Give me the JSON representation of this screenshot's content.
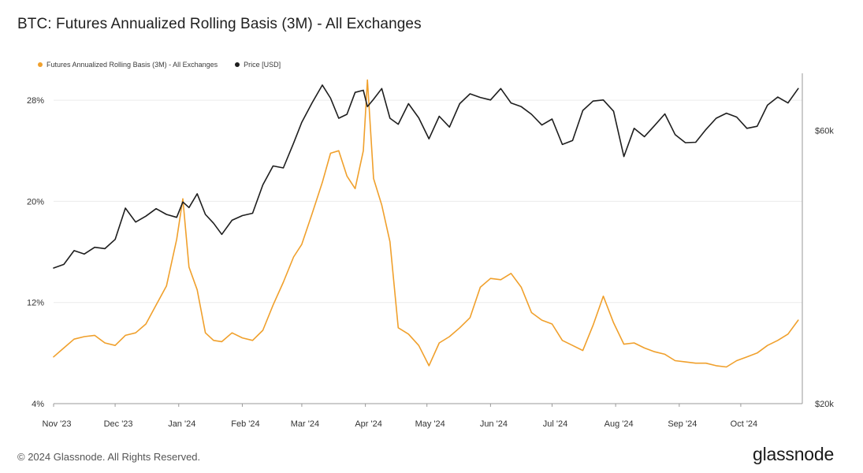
{
  "title": "BTC: Futures Annualized Rolling Basis (3M) - All Exchanges",
  "footer": {
    "copyright": "© 2024 Glassnode. All Rights Reserved.",
    "logo": "glassnode"
  },
  "colors": {
    "basis": "#f0a02c",
    "price": "#1e1e1e",
    "grid": "#ececec",
    "axis": "#999999"
  },
  "chart_data": {
    "type": "line",
    "legend": [
      "Futures Annualized Rolling Basis (3M) - All Exchanges",
      "Price [USD]"
    ],
    "x_labels": [
      "Nov '23",
      "Dec '23",
      "Jan '24",
      "Feb '24",
      "Mar '24",
      "Apr '24",
      "May '24",
      "Jun '24",
      "Jul '24",
      "Aug '24",
      "Sep '24",
      "Oct '24"
    ],
    "y_left": {
      "tick_labels": [
        "4%",
        "12%",
        "20%",
        "28%"
      ],
      "ticks": [
        4,
        12,
        20,
        28
      ],
      "range": [
        4,
        30
      ]
    },
    "y_right": {
      "tick_labels": [
        "$20k",
        "$60k"
      ],
      "ticks": [
        20000,
        60000
      ],
      "scale": "log",
      "range": [
        20000,
        75000
      ]
    },
    "series": [
      {
        "name": "Futures Annualized Rolling Basis (3M) - All Exchanges",
        "axis": "left",
        "x": [
          "2023-11-01",
          "2023-11-06",
          "2023-11-11",
          "2023-11-16",
          "2023-11-21",
          "2023-11-26",
          "2023-12-01",
          "2023-12-06",
          "2023-12-11",
          "2023-12-16",
          "2023-12-21",
          "2023-12-26",
          "2023-12-31",
          "2024-01-03",
          "2024-01-06",
          "2024-01-10",
          "2024-01-14",
          "2024-01-18",
          "2024-01-22",
          "2024-01-27",
          "2024-02-01",
          "2024-02-06",
          "2024-02-11",
          "2024-02-16",
          "2024-02-21",
          "2024-02-26",
          "2024-03-01",
          "2024-03-06",
          "2024-03-11",
          "2024-03-15",
          "2024-03-19",
          "2024-03-23",
          "2024-03-27",
          "2024-03-31",
          "2024-04-02",
          "2024-04-05",
          "2024-04-09",
          "2024-04-13",
          "2024-04-17",
          "2024-04-22",
          "2024-04-27",
          "2024-05-02",
          "2024-05-07",
          "2024-05-12",
          "2024-05-17",
          "2024-05-22",
          "2024-05-27",
          "2024-06-01",
          "2024-06-06",
          "2024-06-11",
          "2024-06-16",
          "2024-06-21",
          "2024-06-26",
          "2024-07-01",
          "2024-07-06",
          "2024-07-11",
          "2024-07-16",
          "2024-07-21",
          "2024-07-26",
          "2024-07-31",
          "2024-08-05",
          "2024-08-10",
          "2024-08-15",
          "2024-08-20",
          "2024-08-25",
          "2024-08-30",
          "2024-09-04",
          "2024-09-09",
          "2024-09-14",
          "2024-09-19",
          "2024-09-24",
          "2024-09-29",
          "2024-10-04",
          "2024-10-09",
          "2024-10-14",
          "2024-10-19",
          "2024-10-24",
          "2024-10-29"
        ],
        "y": [
          7.7,
          8.4,
          9.1,
          9.3,
          9.4,
          8.8,
          8.6,
          9.4,
          9.6,
          10.3,
          11.8,
          13.3,
          17.0,
          20.2,
          14.8,
          13.0,
          9.6,
          9.0,
          8.9,
          9.6,
          9.2,
          9.0,
          9.8,
          11.8,
          13.6,
          15.6,
          16.6,
          19.0,
          21.5,
          23.8,
          24.0,
          22.0,
          21.0,
          24.0,
          29.6,
          21.8,
          19.7,
          16.8,
          10.0,
          9.5,
          8.6,
          7.0,
          8.8,
          9.3,
          10.0,
          10.8,
          13.2,
          13.9,
          13.8,
          14.3,
          13.2,
          11.2,
          10.6,
          10.3,
          9.0,
          8.6,
          8.2,
          10.2,
          12.5,
          10.4,
          8.7,
          8.8,
          8.4,
          8.1,
          7.9,
          7.4,
          7.3,
          7.2,
          7.2,
          7.0,
          6.9,
          7.4,
          7.7,
          8.0,
          8.6,
          9.0,
          9.5,
          10.6
        ]
      },
      {
        "name": "Price [USD]",
        "axis": "right",
        "x": [
          "2023-11-01",
          "2023-11-06",
          "2023-11-11",
          "2023-11-16",
          "2023-11-21",
          "2023-11-26",
          "2023-12-01",
          "2023-12-06",
          "2023-12-11",
          "2023-12-16",
          "2023-12-21",
          "2023-12-26",
          "2023-12-31",
          "2024-01-03",
          "2024-01-06",
          "2024-01-10",
          "2024-01-14",
          "2024-01-18",
          "2024-01-22",
          "2024-01-27",
          "2024-02-01",
          "2024-02-06",
          "2024-02-11",
          "2024-02-16",
          "2024-02-21",
          "2024-02-26",
          "2024-03-01",
          "2024-03-06",
          "2024-03-11",
          "2024-03-15",
          "2024-03-19",
          "2024-03-23",
          "2024-03-27",
          "2024-03-31",
          "2024-04-02",
          "2024-04-05",
          "2024-04-09",
          "2024-04-13",
          "2024-04-17",
          "2024-04-22",
          "2024-04-27",
          "2024-05-02",
          "2024-05-07",
          "2024-05-12",
          "2024-05-17",
          "2024-05-22",
          "2024-05-27",
          "2024-06-01",
          "2024-06-06",
          "2024-06-11",
          "2024-06-16",
          "2024-06-21",
          "2024-06-26",
          "2024-07-01",
          "2024-07-06",
          "2024-07-11",
          "2024-07-16",
          "2024-07-21",
          "2024-07-26",
          "2024-07-31",
          "2024-08-05",
          "2024-08-10",
          "2024-08-15",
          "2024-08-20",
          "2024-08-25",
          "2024-08-30",
          "2024-09-04",
          "2024-09-09",
          "2024-09-14",
          "2024-09-19",
          "2024-09-24",
          "2024-09-29",
          "2024-10-04",
          "2024-10-09",
          "2024-10-14",
          "2024-10-19",
          "2024-10-24",
          "2024-10-29"
        ],
        "y": [
          34500,
          35000,
          37000,
          36500,
          37500,
          37300,
          38700,
          43900,
          41500,
          42500,
          43800,
          42800,
          42300,
          45000,
          44000,
          46500,
          42800,
          41300,
          39500,
          41800,
          42600,
          43000,
          48200,
          52000,
          51600,
          57000,
          62000,
          67000,
          72000,
          68300,
          63000,
          64000,
          69900,
          70500,
          66000,
          68000,
          71000,
          63000,
          61500,
          66800,
          63100,
          58000,
          63500,
          60800,
          66800,
          69500,
          68500,
          67800,
          71000,
          67000,
          66000,
          64000,
          61300,
          62800,
          56700,
          57600,
          65000,
          67500,
          67800,
          64800,
          54000,
          60500,
          58500,
          61200,
          64100,
          59000,
          57100,
          57200,
          60200,
          63000,
          64300,
          63300,
          60500,
          61000,
          66400,
          68600,
          67000,
          71000
        ]
      }
    ]
  }
}
